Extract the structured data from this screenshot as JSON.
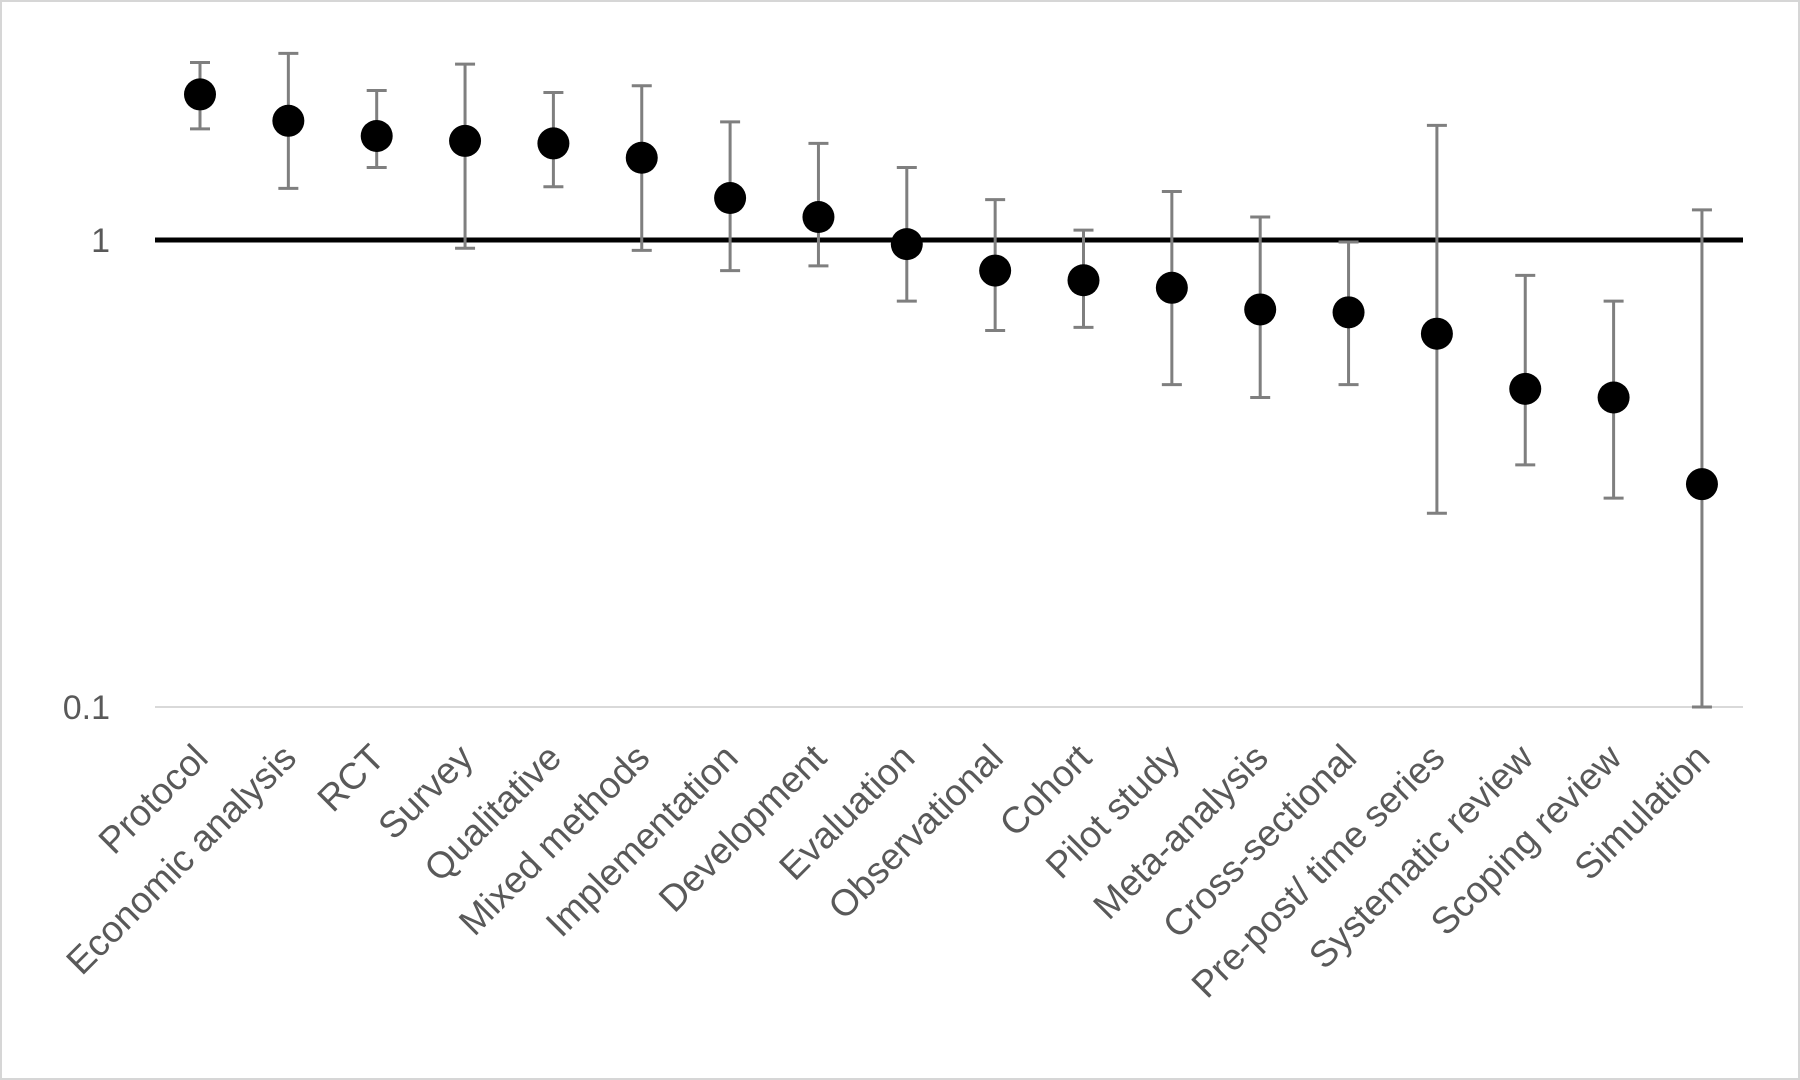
{
  "chart_data": {
    "type": "scatter",
    "subtype": "point-estimate-with-error-bars",
    "y_scale": "log",
    "ylim": [
      0.1,
      3.0
    ],
    "y_ticks": [
      {
        "value": 0.1,
        "label": "0.1"
      },
      {
        "value": 1,
        "label": "1"
      }
    ],
    "reference_line": 1,
    "grid": false,
    "legend": "none",
    "colors": {
      "point": "#000000",
      "error_bar": "#7f7f7f",
      "reference_line": "#000000",
      "axis_line": "#d9d9d9",
      "text": "#595959"
    },
    "categories": [
      "Protocol",
      "Economic analysis",
      "RCT",
      "Survey",
      "Qualitative",
      "Mixed methods",
      "Implementation",
      "Development",
      "Evaluation",
      "Observational",
      "Cohort",
      "Pilot study",
      "Meta-analysis",
      "Cross-sectional",
      "Pre-post/ time series",
      "Systematic review",
      "Scoping review",
      "Simulation"
    ],
    "values": [
      2.05,
      1.8,
      1.67,
      1.63,
      1.61,
      1.5,
      1.23,
      1.12,
      0.98,
      0.86,
      0.82,
      0.79,
      0.71,
      0.7,
      0.63,
      0.48,
      0.46,
      0.3
    ],
    "lower": [
      1.73,
      1.29,
      1.43,
      0.96,
      1.3,
      0.95,
      0.86,
      0.88,
      0.74,
      0.64,
      0.65,
      0.49,
      0.46,
      0.49,
      0.26,
      0.33,
      0.28,
      0.1
    ],
    "upper": [
      2.4,
      2.51,
      2.09,
      2.38,
      2.07,
      2.14,
      1.79,
      1.61,
      1.43,
      1.22,
      1.05,
      1.27,
      1.12,
      0.99,
      1.76,
      0.84,
      0.74,
      1.16
    ]
  }
}
